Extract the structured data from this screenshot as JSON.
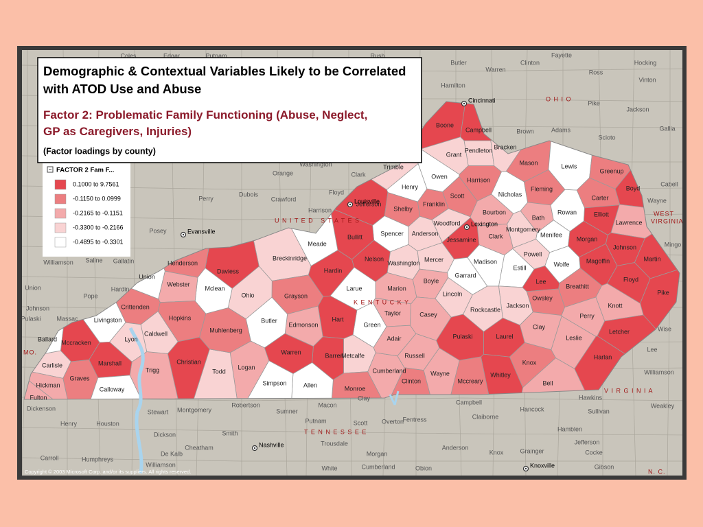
{
  "title": "Demographic & Contextual Variables Likely to be Correlated with ATOD Use and Abuse",
  "subtitle": "Factor 2: Problematic Family Functioning (Abuse, Neglect, GP as Caregivers, Injuries)",
  "note": "(Factor loadings by county)",
  "legend": {
    "title": "FACTOR 2 Fam F...",
    "items": [
      {
        "label": "0.1000 to 9.7561",
        "color": "#e5474f"
      },
      {
        "label": "-0.1150 to 0.0999",
        "color": "#ec7e80"
      },
      {
        "label": "-0.2165 to -0.1151",
        "color": "#f3aaab"
      },
      {
        "label": "-0.3300 to -0.2166",
        "color": "#f9d3d3"
      },
      {
        "label": "-0.4895 to -0.3301",
        "color": "#ffffff"
      }
    ]
  },
  "counties": [
    {
      "name": "Boone",
      "color": "#e5474f"
    },
    {
      "name": "Campbell",
      "color": "#e5474f"
    },
    {
      "name": "Pendleton",
      "color": "#f9d3d3"
    },
    {
      "name": "Bracken",
      "color": "#f9d3d3"
    },
    {
      "name": "Grant",
      "color": "#f9d3d3"
    },
    {
      "name": "Mason",
      "color": "#ec7e80"
    },
    {
      "name": "Lewis",
      "color": "#ffffff"
    },
    {
      "name": "Greenup",
      "color": "#ec7e80"
    },
    {
      "name": "Boyd",
      "color": "#e5474f"
    },
    {
      "name": "Carter",
      "color": "#ec7e80"
    },
    {
      "name": "Trimble",
      "color": "#f9d3d3"
    },
    {
      "name": "Owen",
      "color": "#ffffff"
    },
    {
      "name": "Henry",
      "color": "#ffffff"
    },
    {
      "name": "Harrison",
      "color": "#ec7e80"
    },
    {
      "name": "Nicholas",
      "color": "#ffffff"
    },
    {
      "name": "Fleming",
      "color": "#ec7e80"
    },
    {
      "name": "Scott",
      "color": "#ec7e80"
    },
    {
      "name": "Jefferson",
      "color": "#e5474f"
    },
    {
      "name": "Shelby",
      "color": "#ec7e80"
    },
    {
      "name": "Franklin",
      "color": "#ec7e80"
    },
    {
      "name": "Bourbon",
      "color": "#f3aaab"
    },
    {
      "name": "Bath",
      "color": "#f3aaab"
    },
    {
      "name": "Rowan",
      "color": "#ffffff"
    },
    {
      "name": "Elliott",
      "color": "#e5474f"
    },
    {
      "name": "Lawrence",
      "color": "#f3aaab"
    },
    {
      "name": "Woodford",
      "color": "#f9d3d3"
    },
    {
      "name": "Clark",
      "color": "#f3aaab"
    },
    {
      "name": "Montgomery",
      "color": "#f9d3d3"
    },
    {
      "name": "Menifee",
      "color": "#ffffff"
    },
    {
      "name": "Morgan",
      "color": "#e5474f"
    },
    {
      "name": "Johnson",
      "color": "#e5474f"
    },
    {
      "name": "Martin",
      "color": "#e5474f"
    },
    {
      "name": "Spencer",
      "color": "#ffffff"
    },
    {
      "name": "Anderson",
      "color": "#f9d3d3"
    },
    {
      "name": "Bullitt",
      "color": "#e5474f"
    },
    {
      "name": "Meade",
      "color": "#ffffff"
    },
    {
      "name": "Breckinridge",
      "color": "#f9d3d3"
    },
    {
      "name": "Hardin",
      "color": "#e5474f"
    },
    {
      "name": "Nelson",
      "color": "#e5474f"
    },
    {
      "name": "Washington",
      "color": "#f9d3d3"
    },
    {
      "name": "Mercer",
      "color": "#f9d3d3"
    },
    {
      "name": "Jessamine",
      "color": "#e5474f"
    },
    {
      "name": "Madison",
      "color": "#ffffff"
    },
    {
      "name": "Estill",
      "color": "#ffffff"
    },
    {
      "name": "Powell",
      "color": "#f9d3d3"
    },
    {
      "name": "Wolfe",
      "color": "#ffffff"
    },
    {
      "name": "Magoffin",
      "color": "#e5474f"
    },
    {
      "name": "Floyd",
      "color": "#e5474f"
    },
    {
      "name": "Pike",
      "color": "#e5474f"
    },
    {
      "name": "Breathitt",
      "color": "#ec7e80"
    },
    {
      "name": "Lee",
      "color": "#e5474f"
    },
    {
      "name": "Owsley",
      "color": "#ec7e80"
    },
    {
      "name": "Jackson",
      "color": "#f9d3d3"
    },
    {
      "name": "Perry",
      "color": "#f3aaab"
    },
    {
      "name": "Knott",
      "color": "#f3aaab"
    },
    {
      "name": "Letcher",
      "color": "#e5474f"
    },
    {
      "name": "Leslie",
      "color": "#f3aaab"
    },
    {
      "name": "Clay",
      "color": "#f3aaab"
    },
    {
      "name": "Harlan",
      "color": "#e5474f"
    },
    {
      "name": "Bell",
      "color": "#f3aaab"
    },
    {
      "name": "Knox",
      "color": "#ec7e80"
    },
    {
      "name": "Whitley",
      "color": "#e5474f"
    },
    {
      "name": "Laurel",
      "color": "#e5474f"
    },
    {
      "name": "Rockcastle",
      "color": "#f9d3d3"
    },
    {
      "name": "Garrard",
      "color": "#ffffff"
    },
    {
      "name": "Lincoln",
      "color": "#f9d3d3"
    },
    {
      "name": "Boyle",
      "color": "#f3aaab"
    },
    {
      "name": "Marion",
      "color": "#f3aaab"
    },
    {
      "name": "Larue",
      "color": "#ffffff"
    },
    {
      "name": "Taylor",
      "color": "#f3aaab"
    },
    {
      "name": "Casey",
      "color": "#f3aaab"
    },
    {
      "name": "Pulaski",
      "color": "#e5474f"
    },
    {
      "name": "Russell",
      "color": "#f3aaab"
    },
    {
      "name": "Wayne",
      "color": "#f3aaab"
    },
    {
      "name": "Mccreary",
      "color": "#ec7e80"
    },
    {
      "name": "Clinton",
      "color": "#ec7e80"
    },
    {
      "name": "Cumberland",
      "color": "#f3aaab"
    },
    {
      "name": "Adair",
      "color": "#f3aaab"
    },
    {
      "name": "Green",
      "color": "#ffffff"
    },
    {
      "name": "Metcalfe",
      "color": "#f9d3d3"
    },
    {
      "name": "Monroe",
      "color": "#ec7e80"
    },
    {
      "name": "Hart",
      "color": "#e5474f"
    },
    {
      "name": "Barren",
      "color": "#e5474f"
    },
    {
      "name": "Allen",
      "color": "#ffffff"
    },
    {
      "name": "Warren",
      "color": "#e5474f"
    },
    {
      "name": "Simpson",
      "color": "#ffffff"
    },
    {
      "name": "Edmonson",
      "color": "#f3aaab"
    },
    {
      "name": "Grayson",
      "color": "#ec7e80"
    },
    {
      "name": "Butler",
      "color": "#ffffff"
    },
    {
      "name": "Ohio",
      "color": "#f9d3d3"
    },
    {
      "name": "Logan",
      "color": "#f3aaab"
    },
    {
      "name": "Todd",
      "color": "#f9d3d3"
    },
    {
      "name": "Muhlenberg",
      "color": "#ec7e80"
    },
    {
      "name": "Daviess",
      "color": "#e5474f"
    },
    {
      "name": "Mclean",
      "color": "#ffffff"
    },
    {
      "name": "Henderson",
      "color": "#ec7e80"
    },
    {
      "name": "Union",
      "color": "#ffffff"
    },
    {
      "name": "Webster",
      "color": "#f3aaab"
    },
    {
      "name": "Hopkins",
      "color": "#ec7e80"
    },
    {
      "name": "Christian",
      "color": "#e5474f"
    },
    {
      "name": "Trigg",
      "color": "#f3aaab"
    },
    {
      "name": "Caldwell",
      "color": "#f9d3d3"
    },
    {
      "name": "Crittenden",
      "color": "#ec7e80"
    },
    {
      "name": "Livingston",
      "color": "#ffffff"
    },
    {
      "name": "Lyon",
      "color": "#f9d3d3"
    },
    {
      "name": "Ballard",
      "color": "#ffffff"
    },
    {
      "name": "Mccracken",
      "color": "#e5474f"
    },
    {
      "name": "Marshall",
      "color": "#e5474f"
    },
    {
      "name": "Carlisle",
      "color": "#f9d3d3"
    },
    {
      "name": "Graves",
      "color": "#ec7e80"
    },
    {
      "name": "Hickman",
      "color": "#f3aaab"
    },
    {
      "name": "Fulton",
      "color": "#f3aaab"
    },
    {
      "name": "Calloway",
      "color": "#ffffff"
    }
  ],
  "places": [
    "Coles",
    "Edgar",
    "Putnam",
    "Rush",
    "Butler",
    "Warren",
    "Clinton",
    "Fayette",
    "Ross",
    "Hocking",
    "Vinton",
    "Hamilton",
    "Pike",
    "Jackson",
    "Brown",
    "Adams",
    "Scioto",
    "Gallia",
    "Cabell",
    "Wayne",
    "Mingo",
    "Washington",
    "Orange",
    "Clark",
    "Floyd",
    "Harrison",
    "Dubois",
    "Crawford",
    "Perry",
    "Posey",
    "Williamson",
    "Saline",
    "Gallatin",
    "Hardin",
    "Pope",
    "Union",
    "Johnson",
    "Pulaski",
    "Massac",
    "Stewart",
    "Montgomery",
    "Robertson",
    "Sumner",
    "Macon",
    "Clay",
    "Fentress",
    "Overton",
    "Scott",
    "Campbell",
    "Claiborne",
    "Hancock",
    "Hawkins",
    "Sullivan",
    "Weakley",
    "Henry",
    "Houston",
    "Dickson",
    "Cheatham",
    "Smith",
    "Trousdale",
    "Putnam",
    "Morgan",
    "Anderson",
    "Knox",
    "Grainger",
    "Hamblen",
    "Jefferson",
    "Cocke",
    "Gibson",
    "Carroll",
    "Humphreys",
    "Williamson",
    "De Kalb",
    "White",
    "Cumberland",
    "Obion",
    "Dickenson",
    "Wise",
    "Lee",
    "Williamson"
  ],
  "cities": [
    "Cincinnati",
    "Louisville",
    "Lexington",
    "Evansville",
    "Nashville",
    "Knoxville"
  ],
  "states": [
    "O H I O",
    "U N I T E D   S T A T E S",
    "K E N T U C K Y",
    "T E N N E S S E E",
    "V I R G I N I A",
    "WEST",
    "VIRGINIA",
    "MO.",
    "N. C."
  ],
  "copyright": "Copyright © 2003 Microsoft Corp. and/or its suppliers. All rights reserved."
}
